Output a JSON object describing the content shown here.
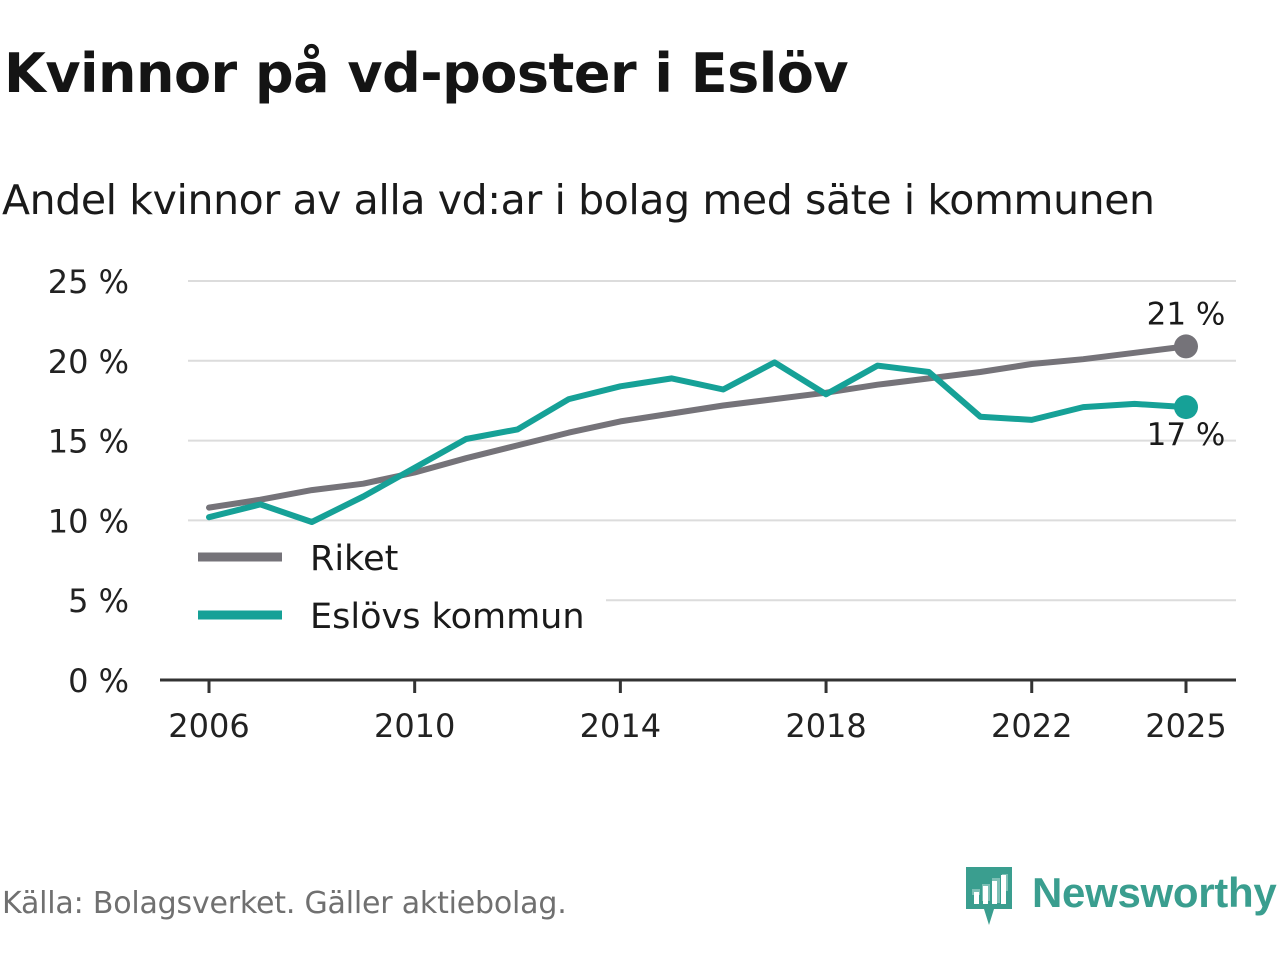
{
  "header": {
    "title": "Kvinnor på vd-poster i Eslöv",
    "subtitle": "Andel kvinnor av alla vd:ar i bolag med säte i kommunen"
  },
  "footer": {
    "source": "Källa: Bolagsverket. Gäller aktiebolag.",
    "brand": "Newsworthy",
    "brand_color": "#3a9e8f"
  },
  "chart_data": {
    "type": "line",
    "title": "Kvinnor på vd-poster i Eslöv",
    "ylabel": "",
    "xlabel": "",
    "x": [
      2006,
      2007,
      2008,
      2009,
      2010,
      2011,
      2012,
      2013,
      2014,
      2015,
      2016,
      2017,
      2018,
      2019,
      2020,
      2021,
      2022,
      2023,
      2024,
      2025
    ],
    "series": [
      {
        "name": "Riket",
        "color": "#757379",
        "values": [
          10.8,
          11.3,
          11.9,
          12.3,
          13.0,
          13.9,
          14.7,
          15.5,
          16.2,
          16.7,
          17.2,
          17.6,
          18.0,
          18.5,
          18.9,
          19.3,
          19.8,
          20.1,
          20.5,
          20.9
        ],
        "end_label": "21 %"
      },
      {
        "name": "Eslövs kommun",
        "color": "#16a197",
        "values": [
          10.2,
          11.0,
          9.9,
          11.5,
          13.3,
          15.1,
          15.7,
          17.6,
          18.4,
          18.9,
          18.2,
          19.9,
          17.9,
          19.7,
          19.3,
          16.5,
          16.3,
          17.1,
          17.3,
          17.1
        ],
        "end_label": "17 %"
      }
    ],
    "ylim": [
      0,
      25
    ],
    "yticks": [
      0,
      5,
      10,
      15,
      20,
      25
    ],
    "ytick_labels": [
      "0 %",
      "5 %",
      "10 %",
      "15 %",
      "20 %",
      "25 %"
    ],
    "xticks": [
      2006,
      2010,
      2014,
      2018,
      2022,
      2025
    ],
    "xtick_labels": [
      "2006",
      "2010",
      "2014",
      "2018",
      "2022",
      "2025"
    ],
    "grid": true,
    "legend_position": "lower-left"
  }
}
